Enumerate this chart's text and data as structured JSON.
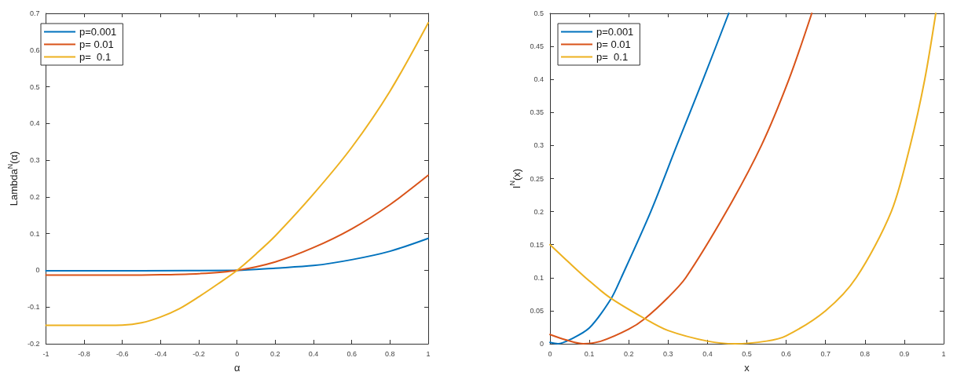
{
  "chart_data": [
    {
      "type": "line",
      "xlabel": "α",
      "ylabel": "Lambda$^{N}$(α)",
      "xlim": [
        -1,
        1
      ],
      "ylim": [
        -0.2,
        0.7
      ],
      "xticks": [
        -1,
        -0.8,
        -0.6,
        -0.4,
        -0.2,
        0,
        0.2,
        0.4,
        0.6,
        0.8,
        1
      ],
      "yticks": [
        -0.2,
        -0.1,
        0,
        0.1,
        0.2,
        0.3,
        0.4,
        0.5,
        0.6,
        0.7
      ],
      "grid": false,
      "legend": "top left",
      "marker": "none",
      "line_style": "solid",
      "series": [
        {
          "name": "p=0.001",
          "color": "#0072bd",
          "x": [
            -1,
            -0.5,
            0,
            0.2,
            0.4,
            0.6,
            0.8,
            1
          ],
          "values": [
            -0.001,
            -0.001,
            0,
            0.006,
            0.013,
            0.029,
            0.052,
            0.087
          ]
        },
        {
          "name": "p= 0.01",
          "color": "#d95319",
          "x": [
            -1,
            -0.6,
            -0.4,
            -0.2,
            0,
            0.2,
            0.4,
            0.6,
            0.8,
            1
          ],
          "values": [
            -0.013,
            -0.013,
            -0.012,
            -0.009,
            0,
            0.023,
            0.062,
            0.113,
            0.179,
            0.259
          ]
        },
        {
          "name": "p=  0.1",
          "color": "#edb120",
          "x": [
            -1,
            -0.8,
            -0.6,
            -0.5,
            -0.4,
            -0.3,
            -0.2,
            -0.1,
            0,
            0.1,
            0.2,
            0.4,
            0.6,
            0.8,
            1
          ],
          "values": [
            -0.15,
            -0.15,
            -0.149,
            -0.143,
            -0.127,
            -0.104,
            -0.072,
            -0.037,
            0,
            0.045,
            0.094,
            0.208,
            0.335,
            0.488,
            0.674
          ]
        }
      ]
    },
    {
      "type": "line",
      "xlabel": "x",
      "ylabel": "I$^{N}$(x)",
      "xlim": [
        0,
        1
      ],
      "ylim": [
        0,
        0.5
      ],
      "xticks": [
        0,
        0.1,
        0.2,
        0.3,
        0.4,
        0.5,
        0.6,
        0.7,
        0.8,
        0.9,
        1
      ],
      "yticks": [
        0,
        0.05,
        0.1,
        0.15,
        0.2,
        0.25,
        0.3,
        0.35,
        0.4,
        0.45,
        0.5
      ],
      "grid": false,
      "legend": "top left",
      "marker": "none",
      "line_style": "solid",
      "series": [
        {
          "name": "p=0.001",
          "color": "#0072bd",
          "x": [
            0,
            0.02,
            0.05,
            0.1,
            0.155,
            0.181,
            0.256,
            0.322,
            0.389,
            0.454
          ],
          "values": [
            0.002,
            0,
            0.006,
            0.024,
            0.068,
            0.1,
            0.2,
            0.3,
            0.4,
            0.5
          ]
        },
        {
          "name": "p= 0.01",
          "color": "#d95319",
          "x": [
            0,
            0.04,
            0.085,
            0.13,
            0.2,
            0.241,
            0.3,
            0.345,
            0.448,
            0.537,
            0.607,
            0.665
          ],
          "values": [
            0.014,
            0.006,
            0,
            0.004,
            0.022,
            0.038,
            0.07,
            0.1,
            0.2,
            0.3,
            0.4,
            0.5
          ]
        },
        {
          "name": "p=  0.1",
          "color": "#edb120",
          "x": [
            0,
            0.05,
            0.1,
            0.152,
            0.241,
            0.3,
            0.4,
            0.47,
            0.55,
            0.6,
            0.7,
            0.778,
            0.867,
            0.915,
            0.952,
            0.98
          ],
          "values": [
            0.15,
            0.122,
            0.095,
            0.07,
            0.038,
            0.02,
            0.004,
            0,
            0.004,
            0.012,
            0.05,
            0.1,
            0.2,
            0.3,
            0.4,
            0.5
          ]
        }
      ]
    }
  ]
}
